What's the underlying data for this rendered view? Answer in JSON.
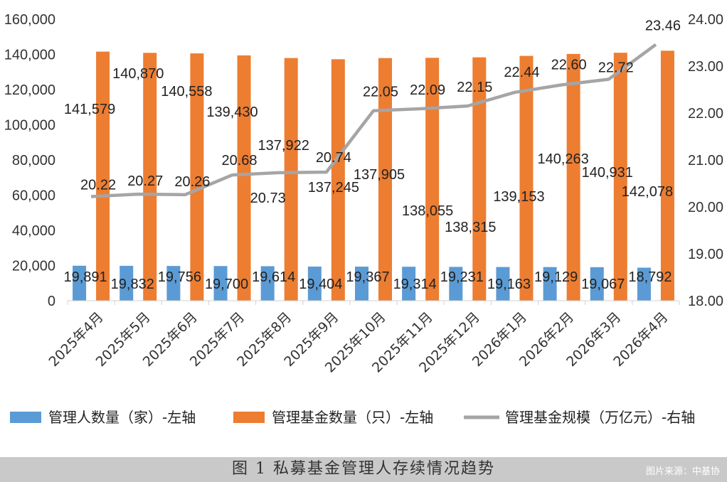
{
  "chart_data": {
    "type": "bar",
    "categories": [
      "2025年4月",
      "2025年5月",
      "2025年6月",
      "2025年7月",
      "2025年8月",
      "2025年9月",
      "2025年10月",
      "2025年11月",
      "2025年12月",
      "2026年1月",
      "2026年2月",
      "2026年3月",
      "2026年4月"
    ],
    "series": [
      {
        "name": "管理人数量（家）-左轴",
        "type": "bar",
        "axis": "left",
        "color": "#5b9bd5",
        "values": [
          19891,
          19832,
          19756,
          19700,
          19614,
          19404,
          19367,
          19314,
          19231,
          19163,
          19129,
          19067,
          18792
        ],
        "labels": [
          "19,891",
          "19,832",
          "19,756",
          "19,700",
          "19,614",
          "19,404",
          "19,367",
          "19,314",
          "19,231",
          "19,163",
          "19,129",
          "19,067",
          "18,792"
        ]
      },
      {
        "name": "管理基金数量（只）-左轴",
        "type": "bar",
        "axis": "left",
        "color": "#ed7d31",
        "values": [
          141579,
          140870,
          140558,
          139430,
          137922,
          137245,
          137905,
          138055,
          138315,
          139153,
          140263,
          140931,
          142078
        ],
        "labels": [
          "141,579",
          "140,870",
          "140,558",
          "139,430",
          "137,922",
          "137,245",
          "137,905",
          "138,055",
          "138,315",
          "139,153",
          "140,263",
          "140,931",
          "142,078"
        ]
      },
      {
        "name": "管理基金规模（万亿元）-右轴",
        "type": "line",
        "axis": "right",
        "color": "#a5a5a5",
        "values": [
          20.22,
          20.27,
          20.26,
          20.68,
          20.73,
          20.74,
          22.05,
          22.09,
          22.15,
          22.44,
          22.6,
          22.72,
          23.46
        ],
        "labels": [
          "20.22",
          "20.27",
          "20.26",
          "20.68",
          "20.73",
          "20.74",
          "22.05",
          "22.09",
          "22.15",
          "22.44",
          "22.60",
          "22.72",
          "23.46"
        ]
      }
    ],
    "left_axis": {
      "ylim": [
        0,
        160000
      ],
      "ticks": [
        "0",
        "20,000",
        "40,000",
        "60,000",
        "80,000",
        "100,000",
        "120,000",
        "140,000",
        "160,000"
      ]
    },
    "right_axis": {
      "ylim": [
        18,
        24
      ],
      "ticks": [
        "18.00",
        "19.00",
        "20.00",
        "21.00",
        "22.00",
        "23.00",
        "24.00"
      ]
    },
    "legend_position": "bottom"
  },
  "caption": "图 1  私募基金管理人存续情况趋势",
  "source": "图片来源：中基协"
}
